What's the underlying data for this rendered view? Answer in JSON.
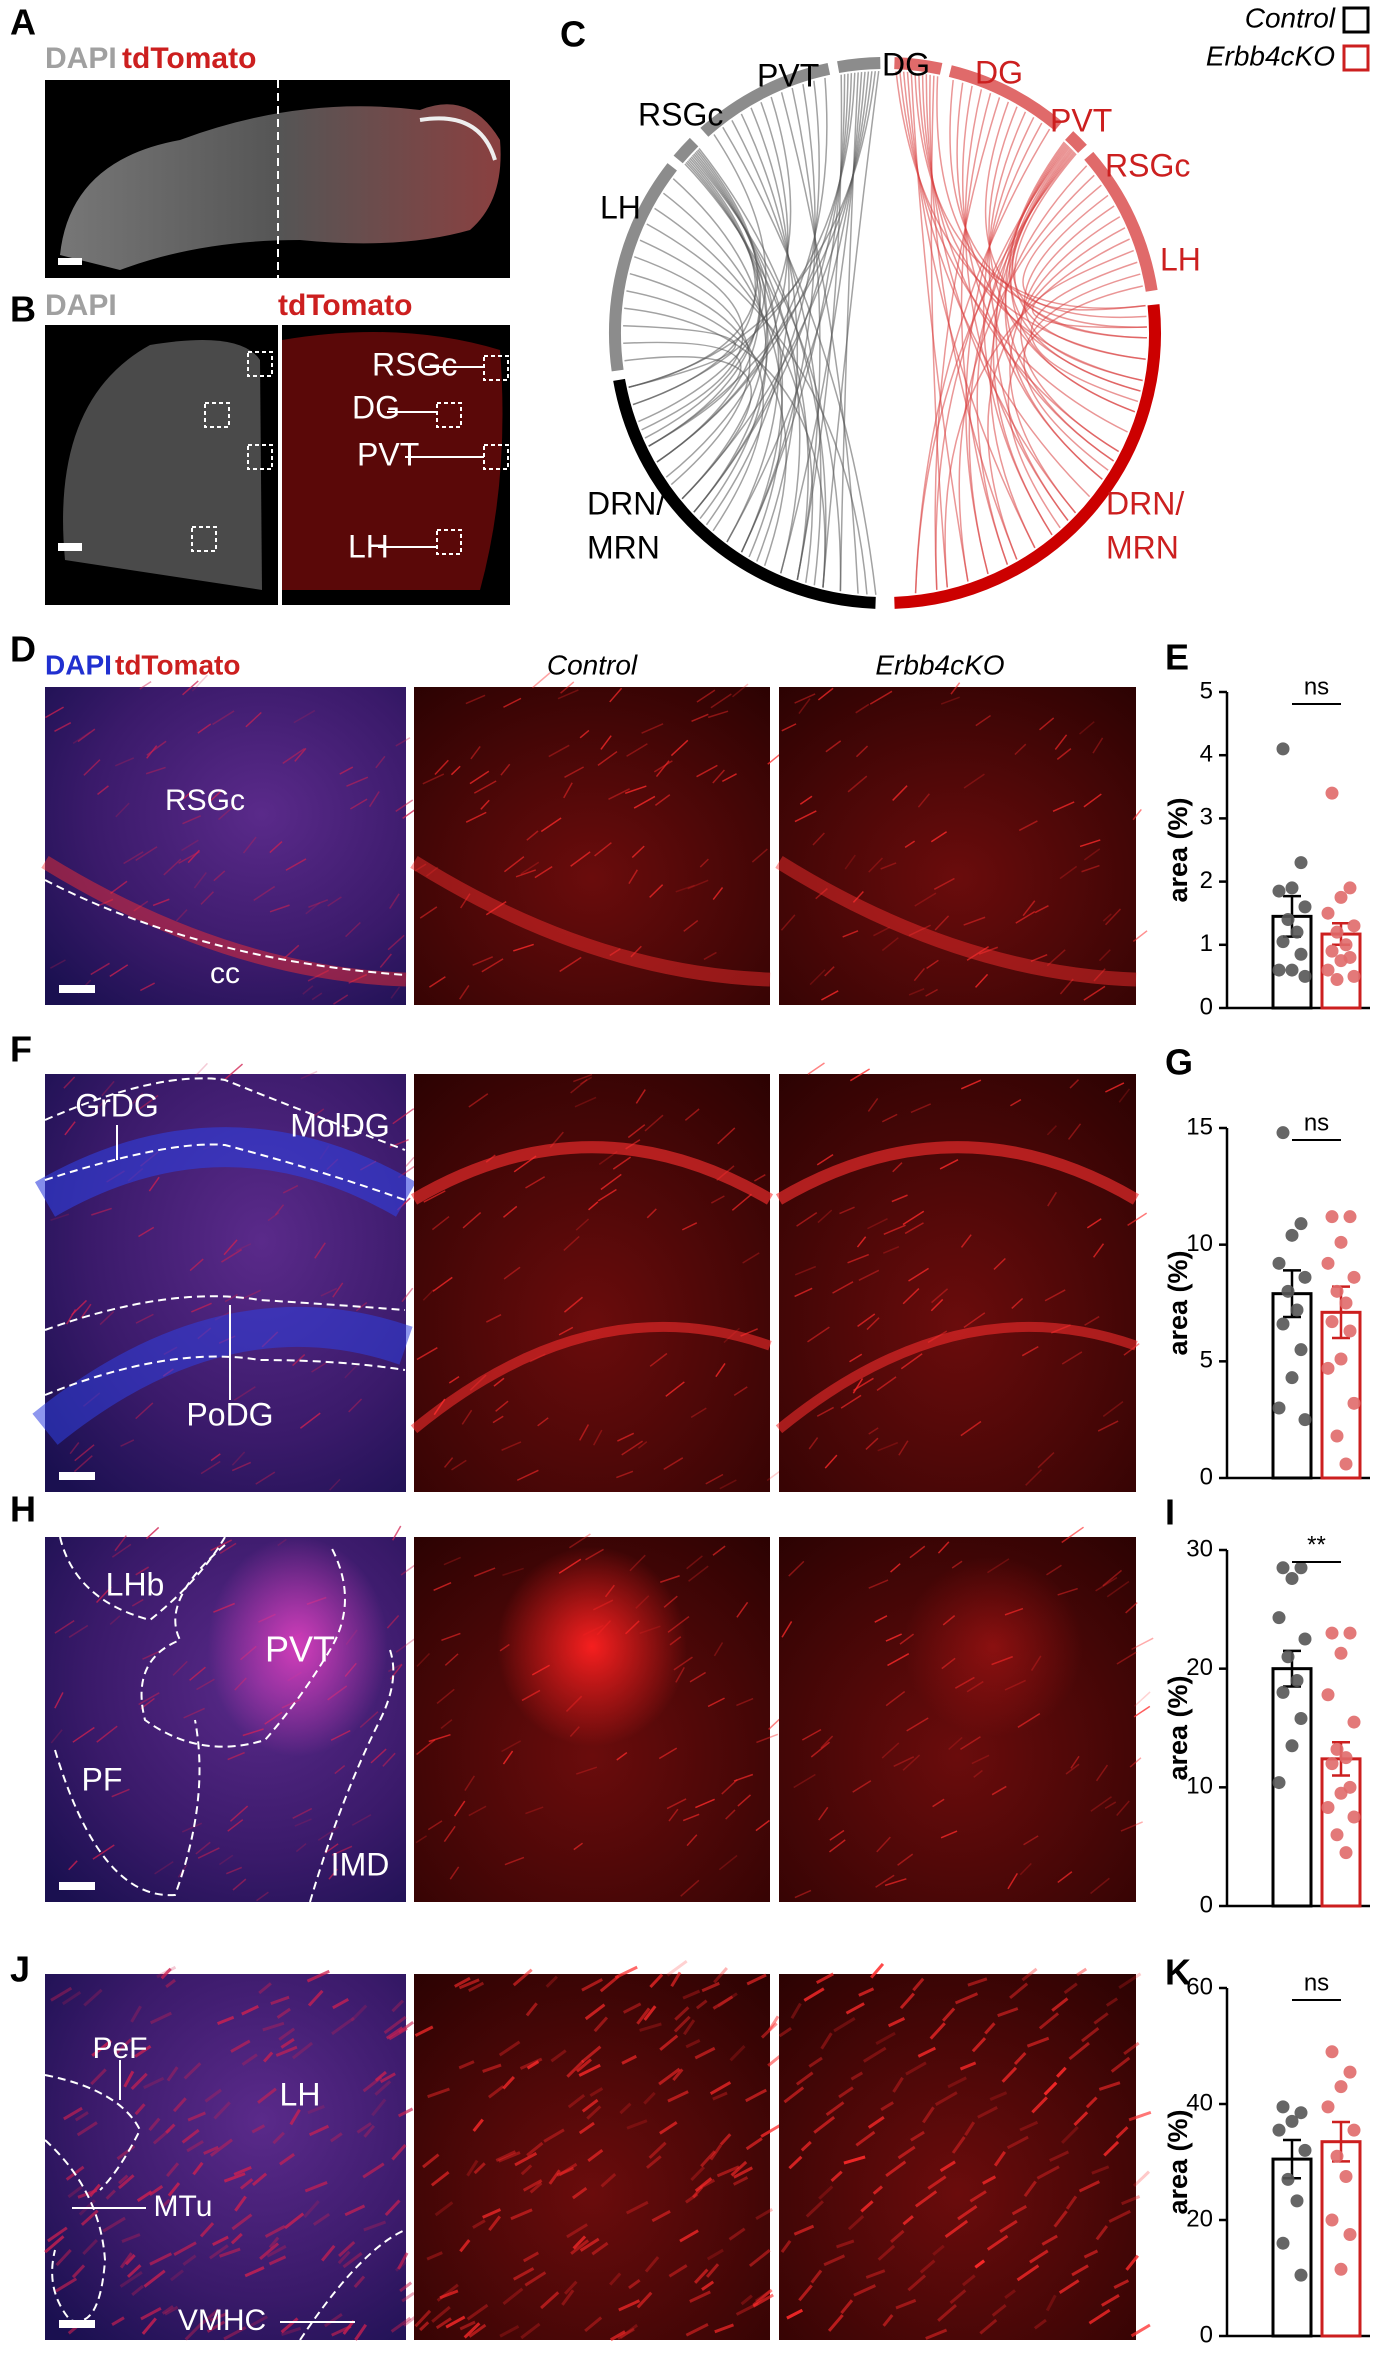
{
  "panel_letters": [
    "A",
    "B",
    "C",
    "D",
    "E",
    "F",
    "G",
    "H",
    "I",
    "J",
    "K"
  ],
  "texts": [
    "DAPI",
    "tdTomato",
    "DAPI",
    "tdTomato",
    "RSGc",
    "DG",
    "PVT",
    "LH",
    "RSGc",
    "PVT",
    "DG",
    "LH",
    "DRN/",
    "MRN",
    "DG",
    "PVT",
    "RSGc",
    "LH",
    "DRN/",
    "MRN",
    "DAPI",
    "tdTomato",
    "Control",
    "Erbb4cKO",
    "RSGc",
    "cc",
    "GrDG",
    "MolDG",
    "PoDG",
    "LHb",
    "PVT",
    "PF",
    "IMD",
    "PeF",
    "LH",
    "MTu",
    "VMHC"
  ],
  "chart_data": [
    {
      "type": "bar",
      "ylabel": "area (%)",
      "annotation": "ns",
      "ylim": [
        0,
        5
      ],
      "yticks": [
        0,
        1,
        2,
        3,
        4,
        5
      ],
      "series": [
        {
          "name": "Control",
          "color": "#000000",
          "point_color": "#555555",
          "values": [
            1.45
          ],
          "errors": [
            0.32
          ],
          "points": [
            4.1,
            2.3,
            1.9,
            1.85,
            1.6,
            1.4,
            1.2,
            1.05,
            0.85,
            0.6,
            0.6,
            0.5
          ]
        },
        {
          "name": "Erbb4cKO",
          "color": "#cc1f1f",
          "point_color": "#e06a6a",
          "values": [
            1.17
          ],
          "errors": [
            0.17
          ],
          "points": [
            3.4,
            1.9,
            1.75,
            1.5,
            1.3,
            1.2,
            1.0,
            0.9,
            0.8,
            0.75,
            0.6,
            0.5,
            0.45
          ]
        }
      ]
    },
    {
      "type": "bar",
      "ylabel": "area (%)",
      "annotation": "ns",
      "ylim": [
        0,
        15
      ],
      "yticks": [
        0,
        5,
        10,
        15
      ],
      "series": [
        {
          "color": "#000000",
          "point_color": "#555555",
          "values": [
            7.9
          ],
          "errors": [
            1.0
          ],
          "points": [
            14.8,
            10.9,
            10.4,
            9.2,
            8.6,
            8.0,
            7.2,
            6.6,
            5.5,
            4.3,
            3.0,
            2.5
          ]
        },
        {
          "color": "#cc1f1f",
          "point_color": "#e06a6a",
          "values": [
            7.1
          ],
          "errors": [
            1.1
          ],
          "points": [
            11.2,
            11.2,
            10.1,
            9.2,
            8.6,
            8.0,
            7.5,
            6.7,
            6.3,
            5.1,
            4.7,
            3.2,
            1.8,
            0.6
          ]
        }
      ]
    },
    {
      "type": "bar",
      "ylabel": "area (%)",
      "annotation": "**",
      "ylim": [
        0,
        30
      ],
      "yticks": [
        0,
        10,
        20,
        30
      ],
      "series": [
        {
          "color": "#000000",
          "point_color": "#555555",
          "values": [
            20.0
          ],
          "errors": [
            1.5
          ],
          "points": [
            28.5,
            28.5,
            27.6,
            24.3,
            22.5,
            21.0,
            19.0,
            18.0,
            15.8,
            13.5,
            10.4
          ]
        },
        {
          "color": "#cc1f1f",
          "point_color": "#e06a6a",
          "values": [
            12.4
          ],
          "errors": [
            1.4
          ],
          "points": [
            23.0,
            23.0,
            21.3,
            17.8,
            15.5,
            13.2,
            12.5,
            12.0,
            10.0,
            9.5,
            8.3,
            7.5,
            6.0,
            4.5
          ]
        }
      ]
    },
    {
      "type": "bar",
      "ylabel": "area (%)",
      "annotation": "ns",
      "ylim": [
        0,
        60
      ],
      "yticks": [
        0,
        20,
        40,
        60
      ],
      "series": [
        {
          "color": "#000000",
          "point_color": "#555555",
          "values": [
            30.5
          ],
          "errors": [
            3.3
          ],
          "points": [
            39.5,
            38.5,
            37.0,
            35.5,
            32.0,
            27.0,
            23.3,
            16.0,
            10.5
          ]
        },
        {
          "color": "#cc1f1f",
          "point_color": "#e06a6a",
          "values": [
            33.5
          ],
          "errors": [
            3.4
          ],
          "points": [
            49.0,
            45.5,
            43.0,
            39.5,
            35.5,
            31.0,
            27.5,
            20.0,
            17.5,
            11.5
          ]
        }
      ]
    }
  ]
}
